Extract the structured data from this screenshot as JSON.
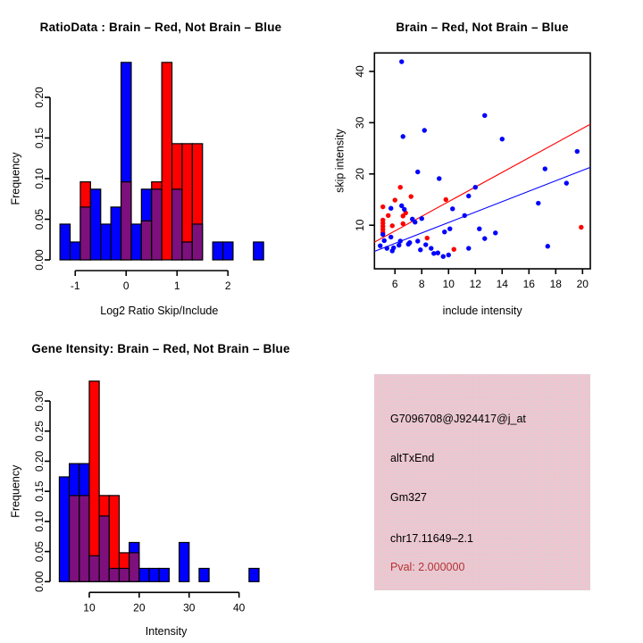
{
  "colors": {
    "red": "#FF0000",
    "blue": "#0000FF",
    "overlap": "#7D107D",
    "pink_box": "#F1C3CD",
    "pval_text": "#B13434",
    "axis": "#000000"
  },
  "chart_data": [
    {
      "id": "ratio_hist",
      "type": "bar",
      "variant": "overlaid-histogram",
      "title": "RatioData : Brain – Red, Not Brain – Blue",
      "xlabel": "Log2 Ratio Skip/Include",
      "ylabel": "Frequency",
      "bin_width": 0.2,
      "xticks": [
        -1,
        0,
        1,
        2
      ],
      "yticks": [
        0,
        0.05,
        0.1,
        0.15,
        0.2
      ],
      "xlim": [
        -1.45,
        2.75
      ],
      "ylim": [
        0,
        0.2555
      ],
      "legend": {
        "red": "Brain",
        "blue": "Not Brain"
      },
      "bars": [
        {
          "x0": -1.3,
          "blue": 0.044,
          "red": 0
        },
        {
          "x0": -1.1,
          "blue": 0.022,
          "red": 0
        },
        {
          "x0": -0.9,
          "blue": 0.065,
          "red": 0.096
        },
        {
          "x0": -0.7,
          "blue": 0.087,
          "red": 0
        },
        {
          "x0": -0.5,
          "blue": 0.044,
          "red": 0
        },
        {
          "x0": -0.3,
          "blue": 0.065,
          "red": 0
        },
        {
          "x0": -0.1,
          "blue": 0.243,
          "red": 0.096
        },
        {
          "x0": 0.1,
          "blue": 0.044,
          "red": 0
        },
        {
          "x0": 0.3,
          "blue": 0.087,
          "red": 0.048
        },
        {
          "x0": 0.5,
          "blue": 0.087,
          "red": 0.096
        },
        {
          "x0": 0.7,
          "blue": 0,
          "red": 0.243
        },
        {
          "x0": 0.9,
          "blue": 0.087,
          "red": 0.143
        },
        {
          "x0": 1.1,
          "blue": 0.022,
          "red": 0.143
        },
        {
          "x0": 1.3,
          "blue": 0.044,
          "red": 0.143
        },
        {
          "x0": 1.7,
          "blue": 0.022,
          "red": 0
        },
        {
          "x0": 1.9,
          "blue": 0.022,
          "red": 0
        },
        {
          "x0": 2.5,
          "blue": 0.022,
          "red": 0
        }
      ]
    },
    {
      "id": "scatter",
      "type": "scatter",
      "title": "Brain – Red, Not Brain – Blue",
      "xlabel": "include intensity",
      "ylabel": "skip intensity",
      "xticks": [
        6,
        8,
        10,
        12,
        14,
        16,
        18,
        20
      ],
      "yticks": [
        10,
        20,
        30,
        40
      ],
      "xlim": [
        4.47,
        20.58
      ],
      "ylim": [
        1.5,
        43.6
      ],
      "series": [
        {
          "name": "Brain",
          "color_key": "red",
          "points": [
            [
              5.1,
              13.6
            ],
            [
              5.5,
              11.9
            ],
            [
              5.1,
              11.0
            ],
            [
              5.1,
              10.4
            ],
            [
              5.1,
              9.8
            ],
            [
              5.1,
              9.2
            ],
            [
              5.1,
              8.6
            ],
            [
              5.8,
              9.9
            ],
            [
              6.0,
              14.9
            ],
            [
              6.4,
              17.4
            ],
            [
              6.6,
              11.8
            ],
            [
              6.6,
              10.3
            ],
            [
              6.8,
              12.4
            ],
            [
              7.2,
              15.6
            ],
            [
              8.4,
              7.5
            ],
            [
              9.8,
              15.0
            ],
            [
              10.4,
              5.3
            ],
            [
              19.9,
              9.6
            ]
          ]
        },
        {
          "name": "Not Brain",
          "color_key": "blue",
          "points": [
            [
              6.5,
              41.9
            ],
            [
              6.6,
              27.3
            ],
            [
              8.2,
              28.5
            ],
            [
              12.7,
              31.4
            ],
            [
              14.0,
              26.8
            ],
            [
              19.6,
              24.4
            ],
            [
              17.2,
              21.0
            ],
            [
              18.8,
              18.2
            ],
            [
              7.7,
              20.4
            ],
            [
              9.3,
              19.1
            ],
            [
              12.0,
              17.4
            ],
            [
              11.5,
              15.7
            ],
            [
              16.7,
              14.3
            ],
            [
              10.3,
              13.2
            ],
            [
              11.2,
              11.9
            ],
            [
              6.5,
              13.8
            ],
            [
              6.7,
              13.1
            ],
            [
              5.7,
              13.3
            ],
            [
              7.3,
              11.2
            ],
            [
              8.0,
              11.3
            ],
            [
              7.5,
              10.6
            ],
            [
              9.7,
              8.7
            ],
            [
              10.1,
              9.3
            ],
            [
              4.9,
              6.0
            ],
            [
              5.1,
              8.2
            ],
            [
              5.2,
              7.0
            ],
            [
              5.4,
              5.5
            ],
            [
              5.7,
              7.7
            ],
            [
              5.8,
              5.0
            ],
            [
              5.9,
              5.6
            ],
            [
              6.3,
              6.1
            ],
            [
              6.4,
              6.9
            ],
            [
              7.0,
              6.3
            ],
            [
              7.1,
              6.6
            ],
            [
              7.7,
              6.9
            ],
            [
              7.9,
              5.2
            ],
            [
              8.3,
              6.2
            ],
            [
              8.7,
              5.5
            ],
            [
              8.9,
              4.5
            ],
            [
              9.2,
              4.6
            ],
            [
              9.6,
              3.9
            ],
            [
              10.0,
              4.2
            ],
            [
              11.5,
              5.5
            ],
            [
              12.3,
              9.3
            ],
            [
              12.7,
              7.4
            ],
            [
              13.5,
              8.5
            ],
            [
              17.4,
              5.9
            ]
          ]
        }
      ],
      "fit_lines": [
        {
          "color_key": "red",
          "x1": 4.47,
          "y1": 6.7,
          "x2": 20.58,
          "y2": 29.7
        },
        {
          "color_key": "blue",
          "x1": 4.47,
          "y1": 4.9,
          "x2": 20.58,
          "y2": 21.3
        }
      ]
    },
    {
      "id": "gene_hist",
      "type": "bar",
      "variant": "overlaid-histogram",
      "title": "Gene Itensity: Brain – Red, Not Brain – Blue",
      "xlabel": "Intensity",
      "ylabel": "Frequency",
      "bin_width": 2,
      "xticks": [
        10,
        20,
        30,
        40
      ],
      "yticks": [
        0,
        0.05,
        0.1,
        0.15,
        0.2,
        0.25,
        0.3
      ],
      "xlim": [
        4.3,
        46.5
      ],
      "ylim": [
        0,
        0.345
      ],
      "legend": {
        "red": "Brain",
        "blue": "Not Brain"
      },
      "bars": [
        {
          "x0": 4,
          "blue": 0.174,
          "red": 0
        },
        {
          "x0": 6,
          "blue": 0.196,
          "red": 0.143
        },
        {
          "x0": 8,
          "blue": 0.196,
          "red": 0.143
        },
        {
          "x0": 10,
          "blue": 0.043,
          "red": 0.333
        },
        {
          "x0": 12,
          "blue": 0.109,
          "red": 0.143
        },
        {
          "x0": 14,
          "blue": 0.022,
          "red": 0.143
        },
        {
          "x0": 16,
          "blue": 0.022,
          "red": 0.048
        },
        {
          "x0": 18,
          "blue": 0.065,
          "red": 0.048
        },
        {
          "x0": 20,
          "blue": 0.022,
          "red": 0
        },
        {
          "x0": 22,
          "blue": 0.022,
          "red": 0
        },
        {
          "x0": 24,
          "blue": 0.022,
          "red": 0
        },
        {
          "x0": 28,
          "blue": 0.065,
          "red": 0
        },
        {
          "x0": 32,
          "blue": 0.022,
          "red": 0
        },
        {
          "x0": 42,
          "blue": 0.022,
          "red": 0
        }
      ]
    }
  ],
  "info_panel": {
    "lines": [
      "G7096708@J924417@j_at",
      "altTxEnd",
      "Gm327",
      "chr17.11649–2.1"
    ],
    "pval": "Pval: 2.000000"
  }
}
